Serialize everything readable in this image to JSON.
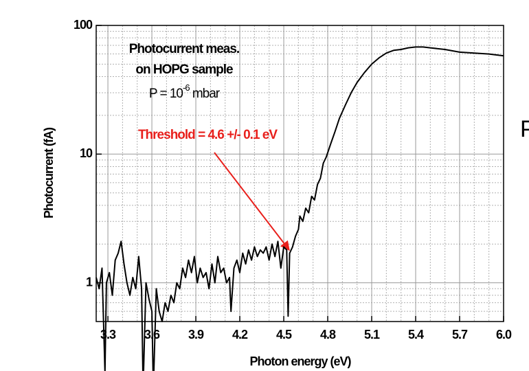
{
  "chart_data": {
    "type": "line",
    "x_label": "Photon energy (eV)",
    "y_label": "Photocurrent (fA)",
    "annotations": [
      "Photocurrent meas.",
      "on HOPG sample"
    ],
    "pressure_label": {
      "prefix": "P = 10",
      "sup": "-6",
      "suffix": " mbar"
    },
    "threshold_label": "Threshold = 4.6 +/- 0.1 eV",
    "side_text": "P",
    "color": "#000000",
    "log_y": true,
    "grid": true,
    "xlim": [
      3.22,
      6.0
    ],
    "ylim": [
      0.5,
      100
    ],
    "xticks": [
      {
        "value": 3.3,
        "label": "3.3"
      },
      {
        "value": 3.6,
        "label": "3.6"
      },
      {
        "value": 3.9,
        "label": "3.9"
      },
      {
        "value": 4.2,
        "label": "4.2"
      },
      {
        "value": 4.5,
        "label": "4.5"
      },
      {
        "value": 4.8,
        "label": "4.8"
      },
      {
        "value": 5.1,
        "label": "5.1"
      },
      {
        "value": 5.4,
        "label": "5.4"
      },
      {
        "value": 5.7,
        "label": "5.7"
      },
      {
        "value": 6.0,
        "label": "6.0"
      }
    ],
    "x_minor_ticks": [
      3.4,
      3.5,
      3.7,
      3.8,
      4.0,
      4.1,
      4.3,
      4.4,
      4.6,
      4.7,
      4.9,
      5.0,
      5.2,
      5.3,
      5.5,
      5.6,
      5.8,
      5.9
    ],
    "yticks": [
      1,
      10,
      100
    ],
    "y_minor_ticks": [
      0.5,
      0.6,
      0.7,
      0.8,
      0.9,
      2,
      3,
      4,
      5,
      6,
      7,
      8,
      9,
      20,
      30,
      40,
      50,
      60,
      70,
      80,
      90
    ],
    "x": [
      3.22,
      3.24,
      3.26,
      3.28,
      3.29,
      3.31,
      3.33,
      3.35,
      3.37,
      3.39,
      3.41,
      3.43,
      3.45,
      3.47,
      3.49,
      3.51,
      3.53,
      3.54,
      3.56,
      3.58,
      3.6,
      3.61,
      3.63,
      3.65,
      3.67,
      3.69,
      3.71,
      3.73,
      3.75,
      3.77,
      3.79,
      3.81,
      3.83,
      3.85,
      3.87,
      3.89,
      3.91,
      3.93,
      3.95,
      3.97,
      3.99,
      4.01,
      4.03,
      4.05,
      4.07,
      4.09,
      4.11,
      4.13,
      4.14,
      4.16,
      4.18,
      4.2,
      4.22,
      4.24,
      4.26,
      4.28,
      4.3,
      4.32,
      4.34,
      4.36,
      4.38,
      4.4,
      4.42,
      4.44,
      4.46,
      4.48,
      4.5,
      4.52,
      4.53,
      4.54,
      4.56,
      4.58,
      4.6,
      4.61,
      4.63,
      4.65,
      4.67,
      4.69,
      4.71,
      4.73,
      4.75,
      4.77,
      4.79,
      4.82,
      4.85,
      4.88,
      4.92,
      4.96,
      5.0,
      5.05,
      5.1,
      5.15,
      5.2,
      5.25,
      5.3,
      5.35,
      5.4,
      5.45,
      5.5,
      5.6,
      5.7,
      5.8,
      5.9,
      6.0
    ],
    "values": [
      1.1,
      0.9,
      1.3,
      0.2,
      1.0,
      1.2,
      0.8,
      1.5,
      1.7,
      2.1,
      1.4,
      1.0,
      0.8,
      1.1,
      0.9,
      1.6,
      0.9,
      0.15,
      1.0,
      0.75,
      0.6,
      0.15,
      0.9,
      0.6,
      0.5,
      0.7,
      0.6,
      0.8,
      0.7,
      1.0,
      0.9,
      1.3,
      1.1,
      1.5,
      1.2,
      1.6,
      1.0,
      1.3,
      1.1,
      1.2,
      0.9,
      1.4,
      1.0,
      1.6,
      1.2,
      1.3,
      1.0,
      1.1,
      0.6,
      1.3,
      1.5,
      1.2,
      1.7,
      1.4,
      1.8,
      1.5,
      1.9,
      1.6,
      1.8,
      1.7,
      1.9,
      1.5,
      2.0,
      1.6,
      2.1,
      1.3,
      1.9,
      1.8,
      0.55,
      1.7,
      1.9,
      2.3,
      2.6,
      3.3,
      3.0,
      3.8,
      3.5,
      4.7,
      4.4,
      5.8,
      6.5,
      8.5,
      9.5,
      12,
      15,
      19,
      24,
      30,
      36,
      43,
      50,
      56,
      61,
      64,
      65,
      67,
      68,
      68,
      67,
      65,
      62,
      61,
      60,
      58
    ]
  }
}
